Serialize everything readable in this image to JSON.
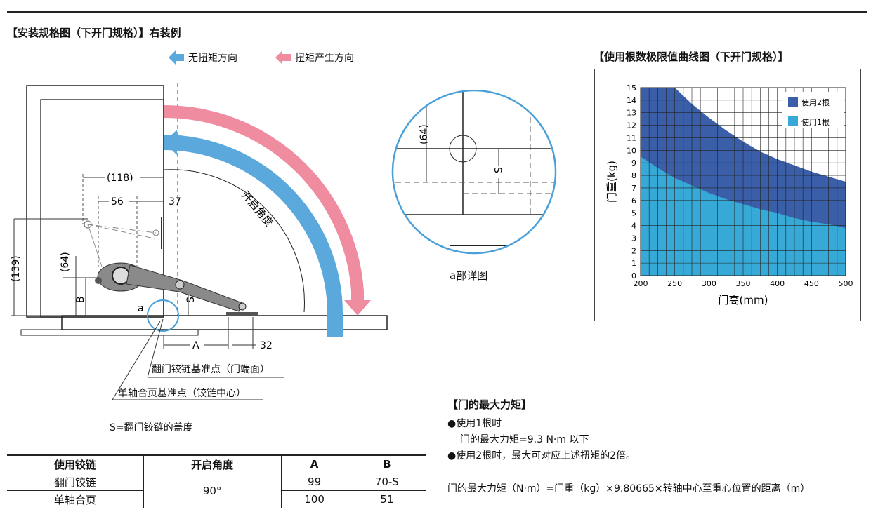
{
  "install": {
    "title": "【安装规格图（下开门规格）】右装例",
    "legend_no_torque": "无扭矩方向",
    "legend_torque": "扭矩产生方向",
    "dim_118": "(118)",
    "dim_56": "56",
    "dim_37": "37",
    "dim_139": "(139)",
    "dim_64": "(64)",
    "dim_B": "B",
    "dim_S": "S",
    "dim_A": "A",
    "dim_32": "32",
    "label_a": "a",
    "opening_angle": "开启角度",
    "ref_flap": "翻门铰链基准点（门端面）",
    "ref_single": "单轴合页基准点（铰链中心）",
    "s_note": "S=翻门铰链的盖度"
  },
  "detail": {
    "dim_64": "(64)",
    "dim_S": "S",
    "caption": "a部详图"
  },
  "colors": {
    "blue_arrow": "#5aa8dc",
    "pink_arrow": "#ef8ca0",
    "two_hinges": "#3a5fa8",
    "one_hinge": "#36a9d6"
  },
  "chart_data": {
    "type": "area",
    "title": "【使用根数极限值曲线图（下开门规格）】",
    "xlabel": "门高(mm)",
    "ylabel": "门重(kg)",
    "xlim": [
      200,
      500
    ],
    "ylim": [
      0,
      15
    ],
    "x_ticks": [
      200,
      250,
      300,
      350,
      400,
      450,
      500
    ],
    "y_ticks": [
      0,
      1,
      2,
      3,
      4,
      5,
      6,
      7,
      8,
      9,
      10,
      11,
      12,
      13,
      14,
      15
    ],
    "grid": true,
    "legend_position": "top-right",
    "series": [
      {
        "name": "使用2根",
        "x": [
          200,
          225,
          250,
          275,
          300,
          325,
          350,
          375,
          400,
          425,
          450,
          475,
          500
        ],
        "y": [
          15,
          15,
          15,
          13.7,
          12.6,
          11.6,
          10.7,
          9.9,
          9.3,
          8.8,
          8.3,
          7.9,
          7.5
        ]
      },
      {
        "name": "使用1根",
        "x": [
          200,
          225,
          250,
          275,
          300,
          325,
          350,
          375,
          400,
          425,
          450,
          475,
          500
        ],
        "y": [
          9.5,
          8.6,
          7.8,
          7.2,
          6.6,
          6.1,
          5.7,
          5.3,
          5.0,
          4.6,
          4.3,
          4.1,
          3.8
        ]
      }
    ]
  },
  "torque": {
    "title": "【门的最大力矩】",
    "item1": "●使用1根时",
    "item1_detail": "门的最大力矩=9.3 N·m 以下",
    "item2": "●使用2根时，最大可对应上述扭矩的2倍。",
    "formula": "门的最大力矩（N·m）=门重（kg）×9.80665×转轴中心至重心位置的距离（m）"
  },
  "table": {
    "headers": [
      "使用铰链",
      "开启角度",
      "A",
      "B"
    ],
    "rows": [
      {
        "hinge": "翻门铰链",
        "A": "99",
        "B": "70-S"
      },
      {
        "hinge": "单轴合页",
        "A": "100",
        "B": "51"
      }
    ],
    "angle": "90°"
  }
}
